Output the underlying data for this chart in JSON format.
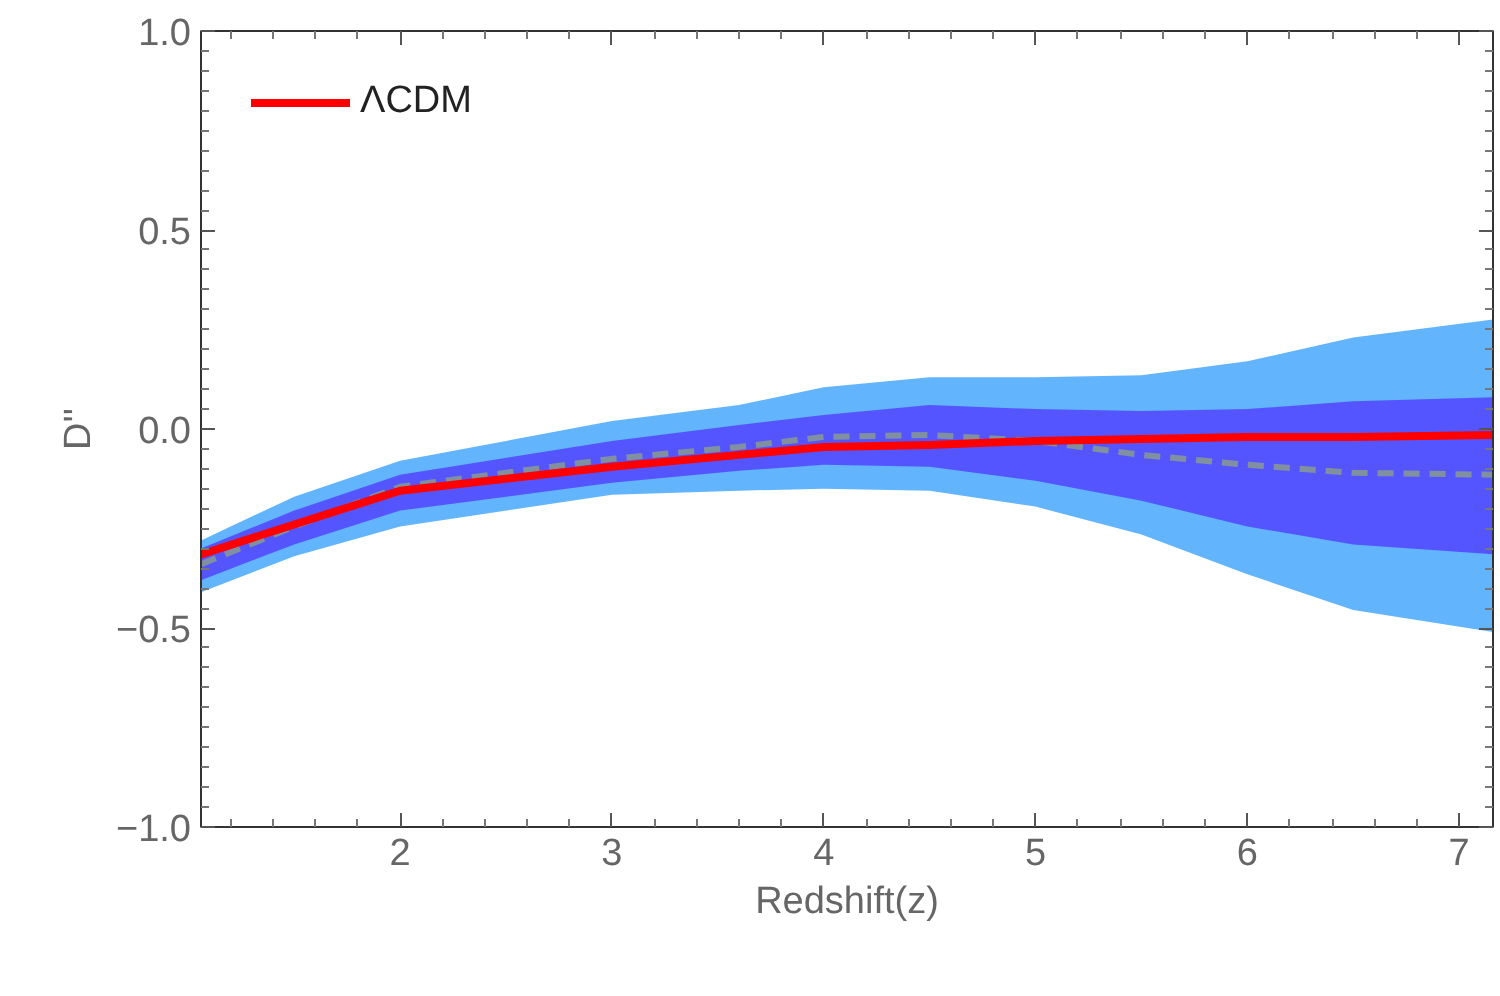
{
  "chart_data": {
    "type": "line",
    "xlabel": "Redshift(z)",
    "ylabel": "D''",
    "x": [
      1.06,
      1.5,
      2,
      3,
      3.6,
      4,
      4.5,
      5,
      5.5,
      6,
      6.5,
      7.16
    ],
    "xlim": [
      1.06,
      7.16
    ],
    "xticks": [
      2,
      3,
      4,
      5,
      6,
      7
    ],
    "ylim": [
      -1.0,
      1.0
    ],
    "yticks": [
      {
        "value": -1.0,
        "label": "−1.0"
      },
      {
        "value": -0.5,
        "label": "−0.5"
      },
      {
        "value": 0.0,
        "label": "0.0"
      },
      {
        "value": 0.5,
        "label": "0.5"
      },
      {
        "value": 1.0,
        "label": "1.0"
      }
    ],
    "grid": false,
    "legend": "top left",
    "marker": "none",
    "series": [
      {
        "type": "line",
        "color": "#62b5fc",
        "values": [
          null,
          null,
          null,
          null,
          null,
          null,
          null,
          null,
          null,
          null,
          null,
          null
        ],
        "lower": [
          -0.41,
          -0.32,
          -0.245,
          -0.165,
          -0.155,
          -0.15,
          -0.155,
          -0.195,
          -0.265,
          -0.365,
          -0.455,
          -0.51
        ],
        "upper": [
          -0.28,
          -0.17,
          -0.08,
          0.02,
          0.06,
          0.105,
          0.13,
          0.13,
          0.135,
          0.17,
          0.23,
          0.275
        ]
      },
      {
        "type": "line",
        "color": "#5555ff",
        "values": [
          null,
          null,
          null,
          null,
          null,
          null,
          null,
          null,
          null,
          null,
          null,
          null
        ],
        "lower": [
          -0.38,
          -0.29,
          -0.205,
          -0.135,
          -0.105,
          -0.09,
          -0.095,
          -0.13,
          -0.18,
          -0.245,
          -0.29,
          -0.315
        ],
        "upper": [
          -0.3,
          -0.205,
          -0.115,
          -0.03,
          0.01,
          0.035,
          0.06,
          0.05,
          0.045,
          0.05,
          0.07,
          0.08
        ]
      },
      {
        "type": "line",
        "color": "#8090a0",
        "line_style": "dashed",
        "values": [
          -0.34,
          -0.245,
          -0.145,
          -0.075,
          -0.045,
          -0.02,
          -0.015,
          -0.03,
          -0.065,
          -0.09,
          -0.11,
          -0.115
        ]
      },
      {
        "name": "ΛCDM",
        "color": "#ff0000",
        "line_style": "solid",
        "values": [
          -0.315,
          -0.24,
          -0.155,
          -0.095,
          -0.065,
          -0.045,
          -0.04,
          -0.03,
          -0.025,
          -0.02,
          -0.02,
          -0.015
        ]
      }
    ]
  }
}
